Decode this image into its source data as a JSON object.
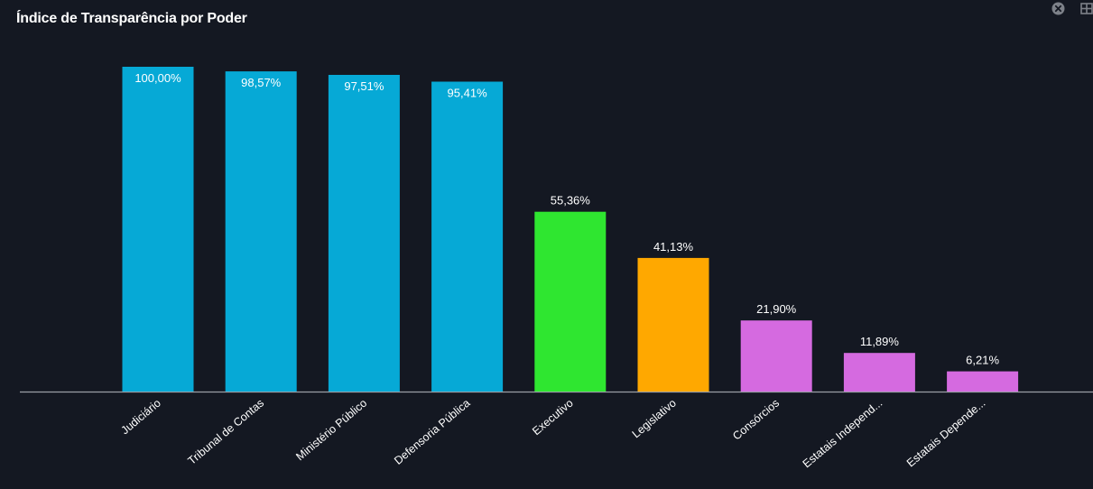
{
  "header": {
    "title": "Índice de Transparência por Poder",
    "close_icon": "close-circle-icon",
    "layout_icon": "grid-layout-icon"
  },
  "chart_data": {
    "type": "bar",
    "title": "Índice de Transparência por Poder",
    "xlabel": "",
    "ylabel": "",
    "ylim": [
      0,
      100
    ],
    "grid": false,
    "legend": "none",
    "categories": [
      "Judiciário",
      "Tribunal de Contas",
      "Ministério Público",
      "Defensoria Pública",
      "Executivo",
      "Legislativo",
      "Consórcios",
      "Estatais Independ...",
      "Estatais Depende..."
    ],
    "values": [
      100.0,
      98.57,
      97.51,
      95.41,
      55.36,
      41.13,
      21.9,
      11.89,
      6.21
    ],
    "data_labels": [
      "100,00%",
      "98,57%",
      "97,51%",
      "95,41%",
      "55,36%",
      "41,13%",
      "21,90%",
      "11,89%",
      "6,21%"
    ],
    "colors": [
      "#06A9D6",
      "#06A9D6",
      "#06A9D6",
      "#06A9D6",
      "#2FE630",
      "#FFA800",
      "#D56AE0",
      "#D56AE0",
      "#D56AE0"
    ]
  }
}
